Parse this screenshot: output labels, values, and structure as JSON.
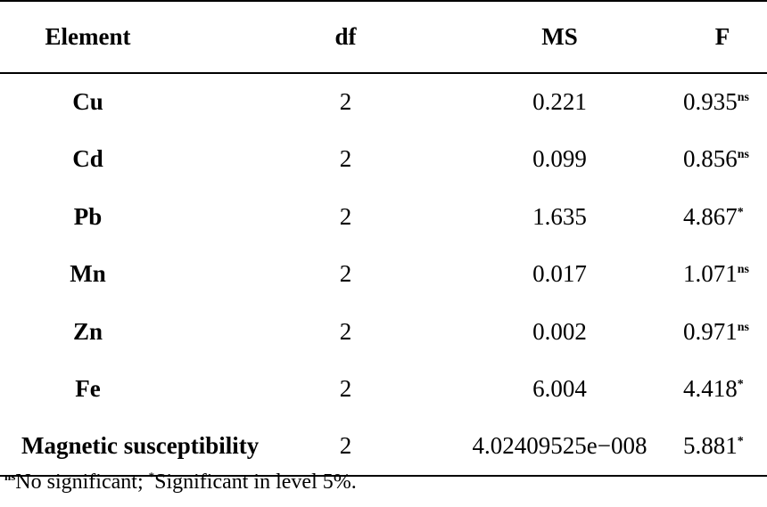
{
  "table": {
    "headers": {
      "element": "Element",
      "df": "df",
      "ms": "MS",
      "f": "F"
    },
    "rows": [
      {
        "element": "Cu",
        "df": "2",
        "ms": "0.221",
        "f": "0.935",
        "sig": "ns"
      },
      {
        "element": "Cd",
        "df": "2",
        "ms": "0.099",
        "f": "0.856",
        "sig": "ns"
      },
      {
        "element": "Pb",
        "df": "2",
        "ms": "1.635",
        "f": "4.867",
        "sig": "*"
      },
      {
        "element": "Mn",
        "df": "2",
        "ms": "0.017",
        "f": "1.071",
        "sig": "ns"
      },
      {
        "element": "Zn",
        "df": "2",
        "ms": "0.002",
        "f": "0.971",
        "sig": "ns"
      },
      {
        "element": "Fe",
        "df": "2",
        "ms": "6.004",
        "f": "4.418",
        "sig": "*"
      },
      {
        "element": "Magnetic susceptibility",
        "df": "2",
        "ms": "4.02409525e−008",
        "f": "5.881",
        "sig": "*"
      }
    ]
  },
  "footnote": {
    "ns_mark": "ns",
    "ns_text": "No significant; ",
    "star_mark": "*",
    "star_text": "Significant in level 5%."
  }
}
